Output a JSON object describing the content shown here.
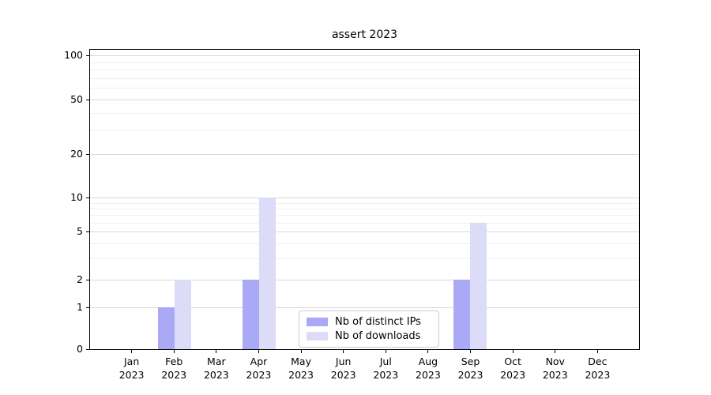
{
  "chart_data": {
    "type": "bar",
    "title": "assert 2023",
    "categories": [
      "Jan 2023",
      "Feb 2023",
      "Mar 2023",
      "Apr 2023",
      "May 2023",
      "Jun 2023",
      "Jul 2023",
      "Aug 2023",
      "Sep 2023",
      "Oct 2023",
      "Nov 2023",
      "Dec 2023"
    ],
    "series": [
      {
        "name": "Nb of distinct IPs",
        "color": "#a9a9f5",
        "values": [
          0,
          1,
          0,
          2,
          0,
          0,
          0,
          0,
          2,
          0,
          0,
          0
        ]
      },
      {
        "name": "Nb of downloads",
        "color": "#dcdcf8",
        "values": [
          0,
          2,
          0,
          10,
          0,
          0,
          0,
          0,
          6,
          0,
          0,
          0
        ]
      }
    ],
    "xlabel": "",
    "ylabel": "",
    "yscale": "symlog",
    "y_ticks": [
      0,
      1,
      2,
      5,
      10,
      20,
      50,
      100
    ],
    "y_minor_ticks": [
      3,
      4,
      6,
      7,
      8,
      9,
      30,
      40,
      60,
      70,
      80,
      90
    ],
    "ylim": [
      0,
      112
    ],
    "grid": true,
    "legend_position": "lower center"
  },
  "colors": {
    "bar_distinct_ips": "#a9a9f5",
    "bar_downloads": "#dcdcf8",
    "grid_major": "#d8d8d8",
    "grid_minor": "#efefef",
    "axis": "#000000",
    "legend_border": "#cccccc",
    "background": "#ffffff"
  }
}
